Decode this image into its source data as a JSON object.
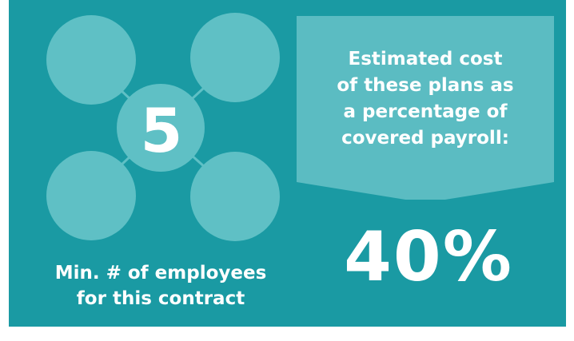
{
  "colors": {
    "background": "#1a9aa3",
    "circle": "#5fc0c5",
    "banner": "#5bbcc2",
    "text": "#ffffff"
  },
  "left_panel": {
    "number": "5",
    "caption_lines": [
      "Min. # of employees",
      "for this contract"
    ]
  },
  "right_panel": {
    "banner_lines": [
      "Estimated cost",
      "of these plans as",
      "a percentage of",
      "covered payroll:"
    ],
    "percentage": "40%"
  }
}
